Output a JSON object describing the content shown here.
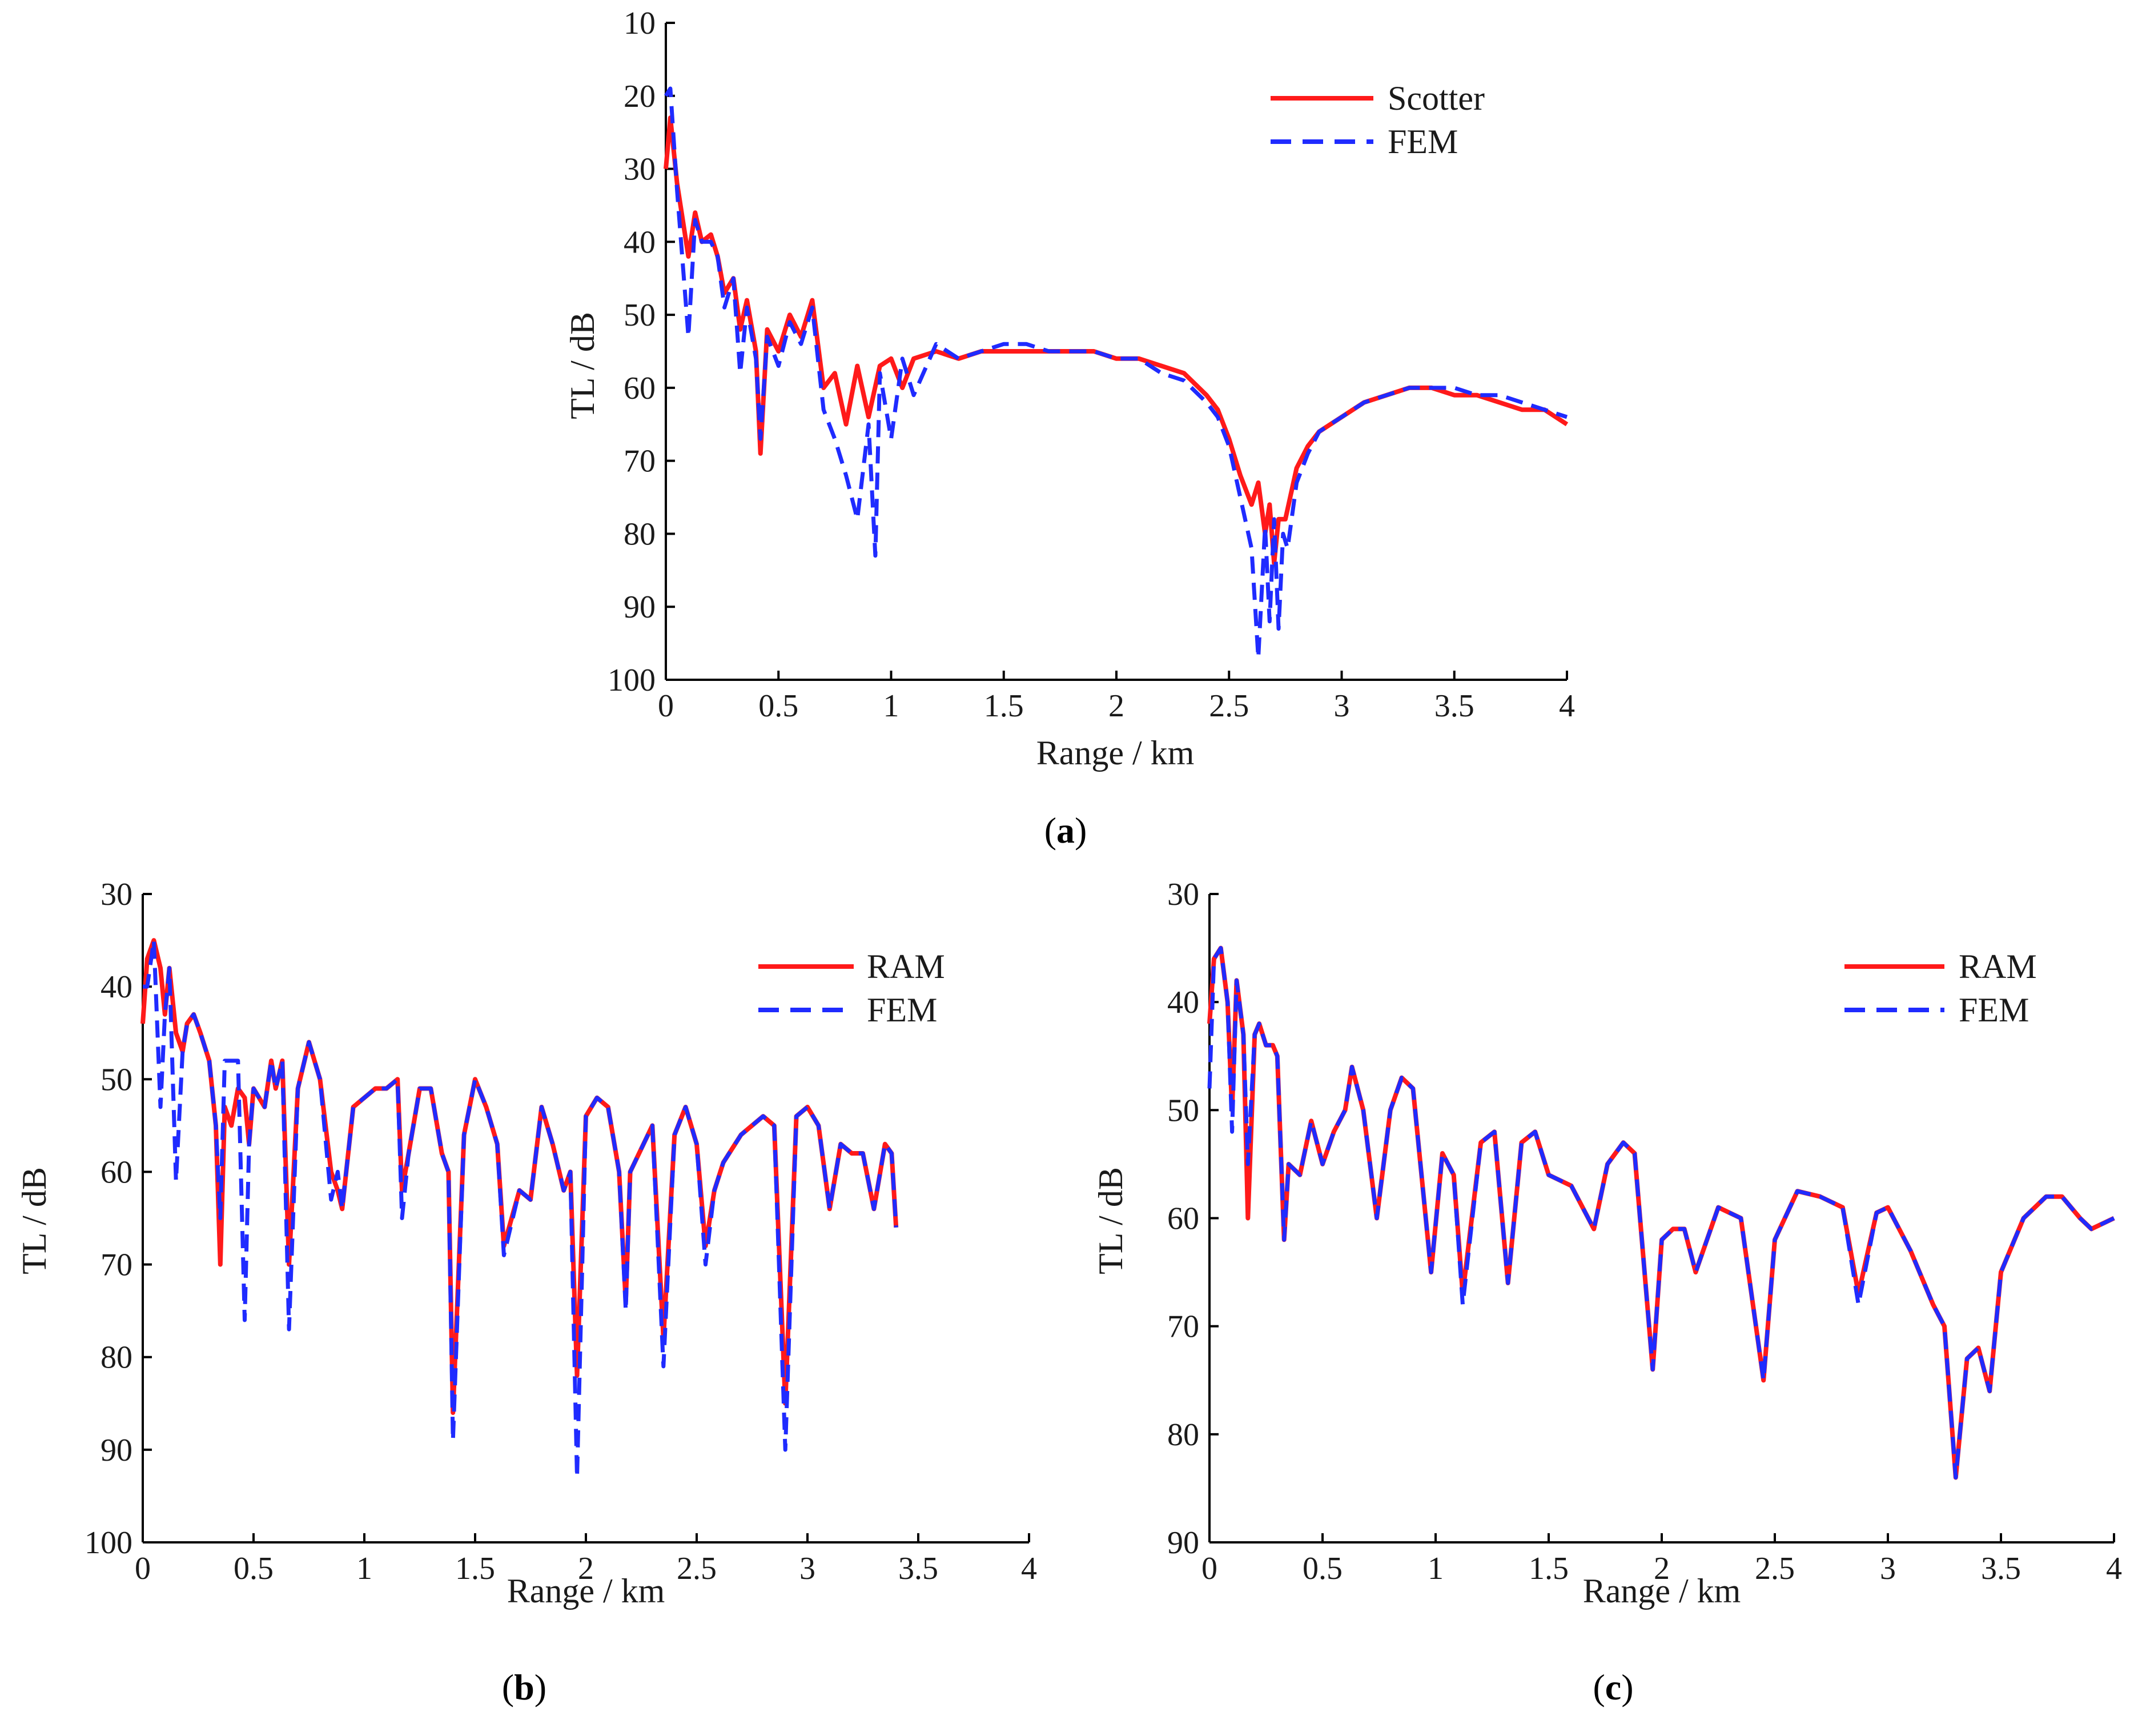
{
  "colors": {
    "red": "#ff1a1a",
    "blue": "#1f2bff",
    "axis": "#000000"
  },
  "chart_data": [
    {
      "id": "a",
      "type": "line",
      "caption_letter": "a",
      "xlabel": "Range / km",
      "ylabel": "TL / dB",
      "xlim": [
        0,
        4
      ],
      "ylim": [
        10,
        100
      ],
      "y_inverted": true,
      "xticks": [
        0,
        0.5,
        1,
        1.5,
        2,
        2.5,
        3,
        3.5,
        4
      ],
      "xtick_labels": [
        "0",
        "0.5",
        "1",
        "1.5",
        "2",
        "2.5",
        "3",
        "3.5",
        "4"
      ],
      "yticks": [
        10,
        20,
        30,
        40,
        50,
        60,
        70,
        80,
        90,
        100
      ],
      "ytick_labels": [
        "10",
        "20",
        "30",
        "40",
        "50",
        "60",
        "70",
        "80",
        "90",
        "100"
      ],
      "legend_position": "top-right",
      "series": [
        {
          "name": "Scotter",
          "style": "solid",
          "color": "red",
          "x": [
            0,
            0.02,
            0.05,
            0.08,
            0.1,
            0.13,
            0.16,
            0.2,
            0.23,
            0.26,
            0.3,
            0.33,
            0.36,
            0.4,
            0.42,
            0.45,
            0.5,
            0.55,
            0.6,
            0.65,
            0.7,
            0.75,
            0.8,
            0.85,
            0.9,
            0.95,
            1.0,
            1.05,
            1.1,
            1.2,
            1.3,
            1.4,
            1.5,
            1.6,
            1.7,
            1.8,
            1.9,
            2.0,
            2.1,
            2.2,
            2.3,
            2.4,
            2.45,
            2.5,
            2.55,
            2.6,
            2.63,
            2.66,
            2.68,
            2.7,
            2.72,
            2.75,
            2.8,
            2.85,
            2.9,
            3.0,
            3.1,
            3.2,
            3.3,
            3.4,
            3.5,
            3.6,
            3.7,
            3.8,
            3.9,
            4.0
          ],
          "y": [
            30,
            23,
            32,
            38,
            42,
            36,
            40,
            39,
            42,
            47,
            45,
            52,
            48,
            55,
            69,
            52,
            55,
            50,
            53,
            48,
            60,
            58,
            65,
            57,
            64,
            57,
            56,
            60,
            56,
            55,
            56,
            55,
            55,
            55,
            55,
            55,
            55,
            56,
            56,
            57,
            58,
            61,
            63,
            67,
            72,
            76,
            73,
            80,
            76,
            84,
            78,
            78,
            71,
            68,
            66,
            64,
            62,
            61,
            60,
            60,
            61,
            61,
            62,
            63,
            63,
            65
          ]
        },
        {
          "name": "FEM",
          "style": "dashed",
          "color": "blue",
          "x": [
            0,
            0.02,
            0.05,
            0.08,
            0.1,
            0.13,
            0.16,
            0.2,
            0.23,
            0.26,
            0.3,
            0.33,
            0.36,
            0.4,
            0.42,
            0.45,
            0.5,
            0.55,
            0.6,
            0.65,
            0.7,
            0.75,
            0.8,
            0.85,
            0.9,
            0.93,
            0.95,
            1.0,
            1.05,
            1.1,
            1.2,
            1.3,
            1.4,
            1.5,
            1.6,
            1.7,
            1.8,
            1.9,
            2.0,
            2.1,
            2.2,
            2.3,
            2.4,
            2.45,
            2.5,
            2.55,
            2.6,
            2.63,
            2.66,
            2.68,
            2.7,
            2.72,
            2.74,
            2.76,
            2.8,
            2.85,
            2.9,
            3.0,
            3.1,
            3.2,
            3.3,
            3.4,
            3.5,
            3.6,
            3.7,
            3.8,
            3.9,
            4.0
          ],
          "y": [
            20,
            19,
            33,
            45,
            53,
            37,
            40,
            40,
            42,
            49,
            45,
            58,
            49,
            56,
            67,
            53,
            57,
            51,
            54,
            49,
            63,
            67,
            72,
            78,
            65,
            83,
            58,
            67,
            56,
            61,
            54,
            56,
            55,
            54,
            54,
            55,
            55,
            55,
            56,
            56,
            58,
            59,
            62,
            64,
            68,
            75,
            82,
            97,
            79,
            92,
            78,
            93,
            80,
            82,
            73,
            69,
            66,
            64,
            62,
            61,
            60,
            60,
            60,
            61,
            61,
            62,
            63,
            64
          ]
        }
      ]
    },
    {
      "id": "b",
      "type": "line",
      "caption_letter": "b",
      "xlabel": "Range / km",
      "ylabel": "TL / dB",
      "xlim": [
        0,
        4
      ],
      "ylim": [
        30,
        100
      ],
      "y_inverted": true,
      "xticks": [
        0,
        0.5,
        1,
        1.5,
        2,
        2.5,
        3,
        3.5,
        4
      ],
      "xtick_labels": [
        "0",
        "0.5",
        "1",
        "1.5",
        "2",
        "2.5",
        "3",
        "3.5",
        "4"
      ],
      "yticks": [
        30,
        40,
        50,
        60,
        70,
        80,
        90,
        100
      ],
      "ytick_labels": [
        "30",
        "40",
        "50",
        "60",
        "70",
        "80",
        "90",
        "100"
      ],
      "legend_position": "top-right",
      "series": [
        {
          "name": "RAM",
          "style": "solid",
          "color": "red",
          "x": [
            0,
            0.02,
            0.05,
            0.08,
            0.1,
            0.12,
            0.15,
            0.18,
            0.2,
            0.23,
            0.26,
            0.3,
            0.33,
            0.35,
            0.37,
            0.4,
            0.43,
            0.46,
            0.48,
            0.5,
            0.55,
            0.58,
            0.6,
            0.63,
            0.66,
            0.7,
            0.75,
            0.8,
            0.85,
            0.88,
            0.9,
            0.95,
            1.0,
            1.05,
            1.1,
            1.15,
            1.17,
            1.2,
            1.25,
            1.3,
            1.35,
            1.38,
            1.4,
            1.45,
            1.5,
            1.55,
            1.6,
            1.63,
            1.7,
            1.75,
            1.8,
            1.85,
            1.9,
            1.93,
            1.96,
            2.0,
            2.05,
            2.1,
            2.15,
            2.18,
            2.2,
            2.3,
            2.35,
            2.4,
            2.45,
            2.5,
            2.54,
            2.58,
            2.62,
            2.7,
            2.8,
            2.85,
            2.9,
            2.95,
            3.0,
            3.05,
            3.1,
            3.15,
            3.2,
            3.25,
            3.3,
            3.35,
            3.38,
            3.4
          ],
          "y": [
            44,
            37,
            35,
            38,
            43,
            38,
            45,
            47,
            44,
            43,
            45,
            48,
            55,
            70,
            53,
            55,
            51,
            52,
            57,
            51,
            53,
            48,
            51,
            48,
            70,
            51,
            46,
            50,
            60,
            62,
            64,
            53,
            52,
            51,
            51,
            50,
            62,
            58,
            51,
            51,
            58,
            60,
            86,
            56,
            50,
            53,
            57,
            68,
            62,
            63,
            53,
            57,
            62,
            60,
            82,
            54,
            52,
            53,
            60,
            74,
            60,
            55,
            78,
            56,
            53,
            57,
            68,
            62,
            59,
            56,
            54,
            55,
            85,
            54,
            53,
            55,
            64,
            57,
            58,
            58,
            64,
            57,
            58,
            66
          ]
        },
        {
          "name": "FEM",
          "style": "dashed",
          "color": "blue",
          "x": [
            0,
            0.02,
            0.05,
            0.08,
            0.1,
            0.12,
            0.15,
            0.18,
            0.2,
            0.23,
            0.26,
            0.3,
            0.33,
            0.35,
            0.37,
            0.4,
            0.43,
            0.46,
            0.48,
            0.5,
            0.55,
            0.58,
            0.6,
            0.63,
            0.66,
            0.7,
            0.75,
            0.8,
            0.85,
            0.88,
            0.9,
            0.95,
            1.0,
            1.05,
            1.1,
            1.15,
            1.17,
            1.2,
            1.25,
            1.3,
            1.35,
            1.38,
            1.4,
            1.45,
            1.5,
            1.55,
            1.6,
            1.63,
            1.7,
            1.75,
            1.8,
            1.85,
            1.9,
            1.93,
            1.96,
            2.0,
            2.05,
            2.1,
            2.15,
            2.18,
            2.2,
            2.3,
            2.35,
            2.4,
            2.45,
            2.5,
            2.54,
            2.58,
            2.62,
            2.7,
            2.8,
            2.85,
            2.9,
            2.95,
            3.0,
            3.05,
            3.1,
            3.15,
            3.2,
            3.25,
            3.3,
            3.35,
            3.38,
            3.4
          ],
          "y": [
            40,
            40,
            35,
            53,
            43,
            38,
            61,
            47,
            44,
            43,
            45,
            48,
            55,
            65,
            48,
            48,
            48,
            76,
            57,
            51,
            53,
            48,
            51,
            48,
            77,
            51,
            46,
            50,
            63,
            60,
            64,
            53,
            52,
            51,
            51,
            50,
            65,
            58,
            51,
            51,
            58,
            60,
            89,
            56,
            50,
            53,
            57,
            69,
            62,
            63,
            53,
            57,
            62,
            60,
            93,
            54,
            52,
            53,
            60,
            75,
            60,
            55,
            81,
            56,
            53,
            57,
            70,
            62,
            59,
            56,
            54,
            55,
            90,
            54,
            53,
            55,
            64,
            57,
            58,
            58,
            64,
            57,
            58,
            66
          ]
        }
      ]
    },
    {
      "id": "c",
      "type": "line",
      "caption_letter": "c",
      "xlabel": "Range / km",
      "ylabel": "TL / dB",
      "xlim": [
        0,
        4
      ],
      "ylim": [
        30,
        90
      ],
      "y_inverted": true,
      "xticks": [
        0,
        0.5,
        1,
        1.5,
        2,
        2.5,
        3,
        3.5,
        4
      ],
      "xtick_labels": [
        "0",
        "0.5",
        "1",
        "1.5",
        "2",
        "2.5",
        "3",
        "3.5",
        "4"
      ],
      "yticks": [
        30,
        40,
        50,
        60,
        70,
        80,
        90
      ],
      "ytick_labels": [
        "30",
        "40",
        "50",
        "60",
        "70",
        "80",
        "90"
      ],
      "legend_position": "top-right",
      "series": [
        {
          "name": "RAM",
          "style": "solid",
          "color": "red",
          "x": [
            0,
            0.02,
            0.05,
            0.08,
            0.1,
            0.12,
            0.15,
            0.17,
            0.2,
            0.22,
            0.25,
            0.28,
            0.3,
            0.33,
            0.35,
            0.4,
            0.45,
            0.5,
            0.55,
            0.6,
            0.63,
            0.68,
            0.74,
            0.8,
            0.85,
            0.9,
            0.98,
            1.03,
            1.08,
            1.12,
            1.2,
            1.26,
            1.32,
            1.38,
            1.44,
            1.5,
            1.6,
            1.7,
            1.76,
            1.83,
            1.88,
            1.96,
            2.0,
            2.05,
            2.1,
            2.15,
            2.25,
            2.35,
            2.45,
            2.5,
            2.6,
            2.7,
            2.8,
            2.87,
            2.95,
            3.0,
            3.1,
            3.2,
            3.25,
            3.3,
            3.35,
            3.4,
            3.45,
            3.5,
            3.6,
            3.7,
            3.77,
            3.85,
            3.9,
            4.0
          ],
          "y": [
            42,
            36,
            35,
            40,
            50,
            38,
            43,
            60,
            43,
            42,
            44,
            44,
            45,
            62,
            55,
            56,
            51,
            55,
            52,
            50,
            46,
            50,
            60,
            50,
            47,
            48,
            65,
            54,
            56,
            67,
            53,
            52,
            66,
            53,
            52,
            56,
            57,
            61,
            55,
            53,
            54,
            74,
            62,
            61,
            61,
            65,
            59,
            60,
            75,
            62,
            57.5,
            58,
            59,
            67,
            59.5,
            59,
            63,
            68,
            70,
            84,
            73,
            72,
            76,
            65,
            60,
            58,
            58,
            60,
            61,
            60
          ]
        },
        {
          "name": "FEM",
          "style": "dashed",
          "color": "blue",
          "x": [
            0,
            0.02,
            0.05,
            0.08,
            0.1,
            0.12,
            0.15,
            0.17,
            0.2,
            0.22,
            0.25,
            0.28,
            0.3,
            0.33,
            0.35,
            0.4,
            0.45,
            0.5,
            0.55,
            0.6,
            0.63,
            0.68,
            0.74,
            0.8,
            0.85,
            0.9,
            0.98,
            1.03,
            1.08,
            1.12,
            1.2,
            1.26,
            1.32,
            1.38,
            1.44,
            1.5,
            1.6,
            1.7,
            1.76,
            1.83,
            1.88,
            1.96,
            2.0,
            2.05,
            2.1,
            2.15,
            2.25,
            2.35,
            2.45,
            2.5,
            2.6,
            2.7,
            2.8,
            2.87,
            2.95,
            3.0,
            3.1,
            3.2,
            3.25,
            3.3,
            3.35,
            3.4,
            3.45,
            3.5,
            3.6,
            3.7,
            3.77,
            3.85,
            3.9,
            4.0
          ],
          "y": [
            48,
            36,
            35,
            40,
            52,
            38,
            43,
            55,
            43,
            42,
            44,
            44,
            45,
            62,
            55,
            56,
            51,
            55,
            52,
            50,
            46,
            50,
            60,
            50,
            47,
            48,
            65,
            54,
            56,
            68,
            53,
            52,
            66,
            53,
            52,
            56,
            57,
            61,
            55,
            53,
            54,
            74,
            62,
            61,
            61,
            65,
            59,
            60,
            75,
            62,
            57.5,
            58,
            59,
            68,
            59.5,
            59,
            63,
            68,
            70,
            84,
            73,
            72,
            76,
            65,
            60,
            58,
            58,
            60,
            61,
            60
          ]
        }
      ]
    }
  ]
}
